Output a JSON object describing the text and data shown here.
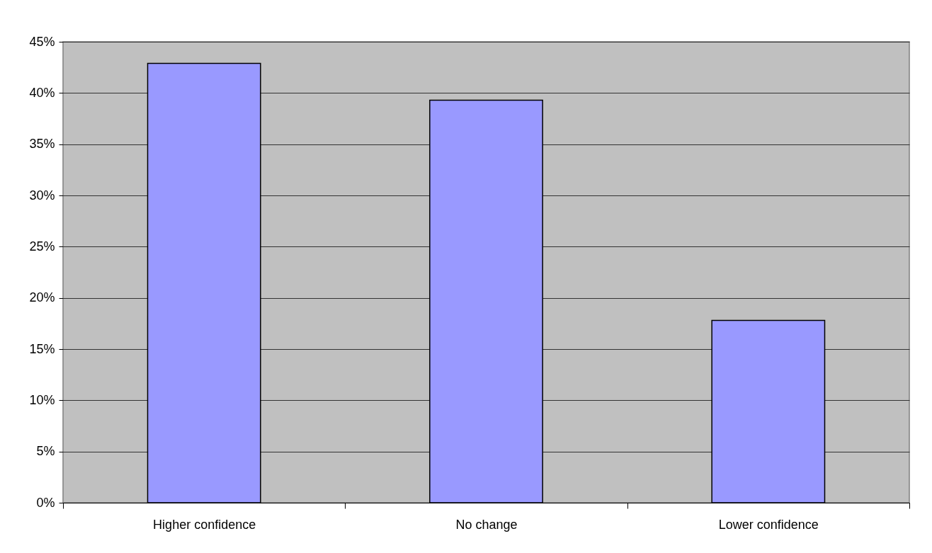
{
  "chart_data": {
    "type": "bar",
    "categories": [
      "Higher confidence",
      "No change",
      "Lower confidence"
    ],
    "values": [
      42.9,
      39.3,
      17.8
    ],
    "color": "#9999ff",
    "ylim": [
      0,
      45
    ],
    "yticks": [
      {
        "value": 0,
        "label": "0%"
      },
      {
        "value": 5,
        "label": "5%"
      },
      {
        "value": 10,
        "label": "10%"
      },
      {
        "value": 15,
        "label": "15%"
      },
      {
        "value": 20,
        "label": "20%"
      },
      {
        "value": 25,
        "label": "25%"
      },
      {
        "value": 30,
        "label": "30%"
      },
      {
        "value": 35,
        "label": "35%"
      },
      {
        "value": 40,
        "label": "40%"
      },
      {
        "value": 45,
        "label": "45%"
      }
    ],
    "grid": "y"
  }
}
